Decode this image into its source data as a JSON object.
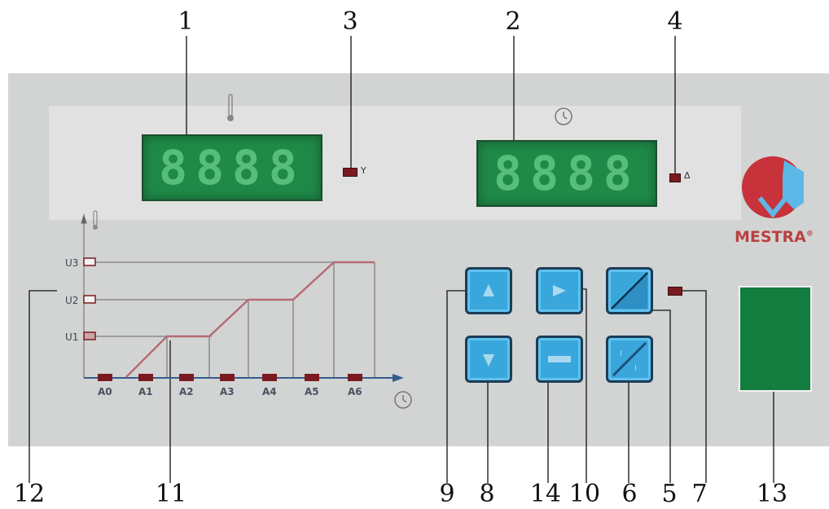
{
  "callouts": {
    "c1": "1",
    "c2": "2",
    "c3": "3",
    "c4": "4",
    "c5": "5",
    "c6": "6",
    "c7": "7",
    "c8": "8",
    "c9": "9",
    "c10": "10",
    "c11": "11",
    "c12": "12",
    "c13": "13",
    "c14": "14"
  },
  "displays": {
    "temperature_readout": "8888",
    "time_readout": "8888"
  },
  "indicators": {
    "led3_label": "Y",
    "led4_label": "Δ"
  },
  "logo": {
    "brand_text": "MESTRA",
    "registered_mark": "®",
    "colors": {
      "red": "#c8323a",
      "blue": "#5cb8e6"
    }
  },
  "graph": {
    "levels": [
      "U3",
      "U2",
      "U1"
    ],
    "stages": [
      "A0",
      "A1",
      "A2",
      "A3",
      "A4",
      "A5",
      "A6"
    ]
  },
  "icons": {
    "temperature": "thermometer-icon",
    "time": "clock-icon",
    "up": "arrow-up-icon",
    "down": "arrow-down-icon",
    "right": "arrow-right-icon",
    "enter": "enter-icon",
    "start_stop": "start-stop-icon",
    "function": "function-icon"
  },
  "colors": {
    "panel": "#d2d4d3",
    "display_green": "#1f8a48",
    "button_blue": "#3aa7dc",
    "led_red": "#7a1a20",
    "ramp_line": "#b76b74"
  }
}
